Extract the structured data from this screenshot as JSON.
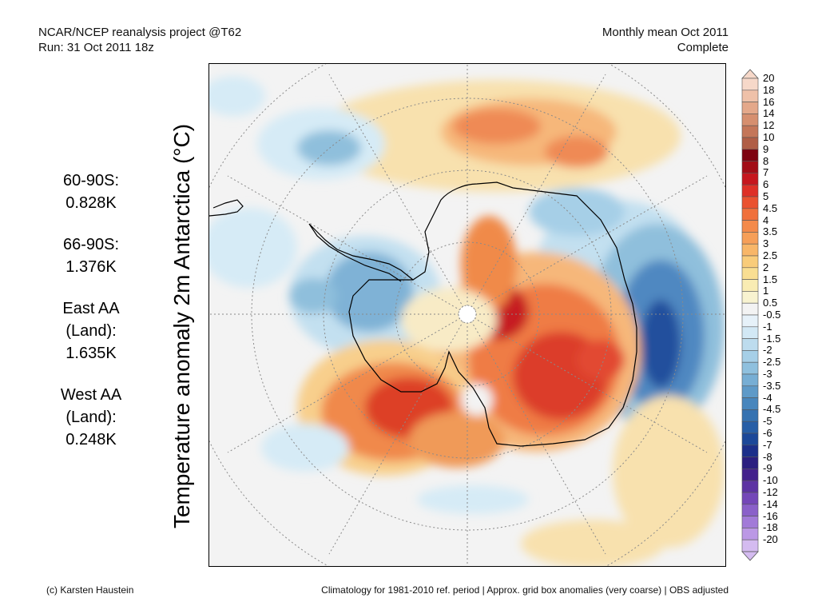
{
  "header": {
    "left_line1": "NCAR/NCEP reanalysis project @T62",
    "left_line2": "Run: 31 Oct 2011 18z",
    "right_line1": "Monthly mean Oct 2011",
    "right_line2": "Complete"
  },
  "stats": [
    {
      "label_lines": [
        "60-90S:"
      ],
      "value": "0.828K"
    },
    {
      "label_lines": [
        "66-90S:"
      ],
      "value": "1.376K"
    },
    {
      "label_lines": [
        "East AA",
        "(Land):"
      ],
      "value": "1.635K"
    },
    {
      "label_lines": [
        "West AA",
        "(Land):"
      ],
      "value": "0.248K"
    }
  ],
  "map": {
    "title": "Temperature anomaly 2m Antarctica (°C)",
    "projection": "south-polar-stereographic",
    "grid": true
  },
  "colorbar": {
    "labels": [
      "20",
      "18",
      "16",
      "14",
      "12",
      "10",
      "9",
      "8",
      "7",
      "6",
      "5",
      "4.5",
      "4",
      "3.5",
      "3",
      "2.5",
      "2",
      "1.5",
      "1",
      "0.5",
      "-0.5",
      "-1",
      "-1.5",
      "-2",
      "-2.5",
      "-3",
      "-3.5",
      "-4",
      "-4.5",
      "-5",
      "-6",
      "-7",
      "-8",
      "-9",
      "-10",
      "-12",
      "-14",
      "-16",
      "-18",
      "-20"
    ],
    "colors": [
      "#f6d8c9",
      "#efc1a9",
      "#e4a88a",
      "#d68f6f",
      "#c47659",
      "#b05e46",
      "#7e0310",
      "#a20d17",
      "#c6161e",
      "#de3027",
      "#ea5230",
      "#f0703c",
      "#f48a4a",
      "#f69f58",
      "#f8b668",
      "#f9cc7a",
      "#f9de92",
      "#f9ecb3",
      "#f8f3d0",
      "#f3f3f3",
      "#e6f1f9",
      "#d2e8f5",
      "#bddcee",
      "#a6cfe7",
      "#8fc0de",
      "#77aed4",
      "#5e9ac8",
      "#4886bd",
      "#3572b1",
      "#275ea6",
      "#1c4899",
      "#1c2f8a",
      "#2c1f80",
      "#43218c",
      "#5d33a3",
      "#7447b8",
      "#8a60c9",
      "#a27ad8",
      "#bb98e5",
      "#d4bbf0"
    ]
  },
  "footer": {
    "left": "(c) Karsten Haustein",
    "right": "Climatology for 1981-2010 ref. period | Approx. grid box anomalies (very coarse) | OBS adjusted"
  }
}
